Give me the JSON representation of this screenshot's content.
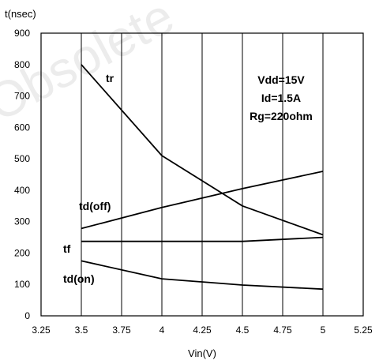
{
  "watermark": "Obsolete",
  "chart_data": {
    "type": "line",
    "title": "",
    "xlabel": "Vin(V)",
    "ylabel": "t(nsec)",
    "xlim": [
      3.25,
      5.25
    ],
    "ylim": [
      0,
      900
    ],
    "x_ticks": [
      "3.25",
      "3.5",
      "3.75",
      "4",
      "4.25",
      "4.5",
      "4.75",
      "5",
      "5.25"
    ],
    "y_ticks": [
      "0",
      "100",
      "200",
      "300",
      "400",
      "500",
      "600",
      "700",
      "800",
      "900"
    ],
    "grid": "vertical only",
    "legend": "none",
    "series": [
      {
        "name": "tr",
        "x": [
          3.5,
          4.0,
          4.5,
          5.0
        ],
        "y": [
          800,
          510,
          350,
          258
        ]
      },
      {
        "name": "td(off)",
        "x": [
          3.5,
          4.0,
          4.5,
          5.0
        ],
        "y": [
          278,
          345,
          405,
          460
        ]
      },
      {
        "name": "tf",
        "x": [
          3.5,
          4.0,
          4.5,
          5.0
        ],
        "y": [
          237,
          237,
          237,
          250
        ]
      },
      {
        "name": "td(on)",
        "x": [
          3.5,
          4.0,
          4.5,
          5.0
        ],
        "y": [
          175,
          118,
          98,
          85
        ]
      }
    ],
    "annotations": [
      "Vdd=15V",
      "Id=1.5A",
      "Rg=220ohm"
    ]
  }
}
